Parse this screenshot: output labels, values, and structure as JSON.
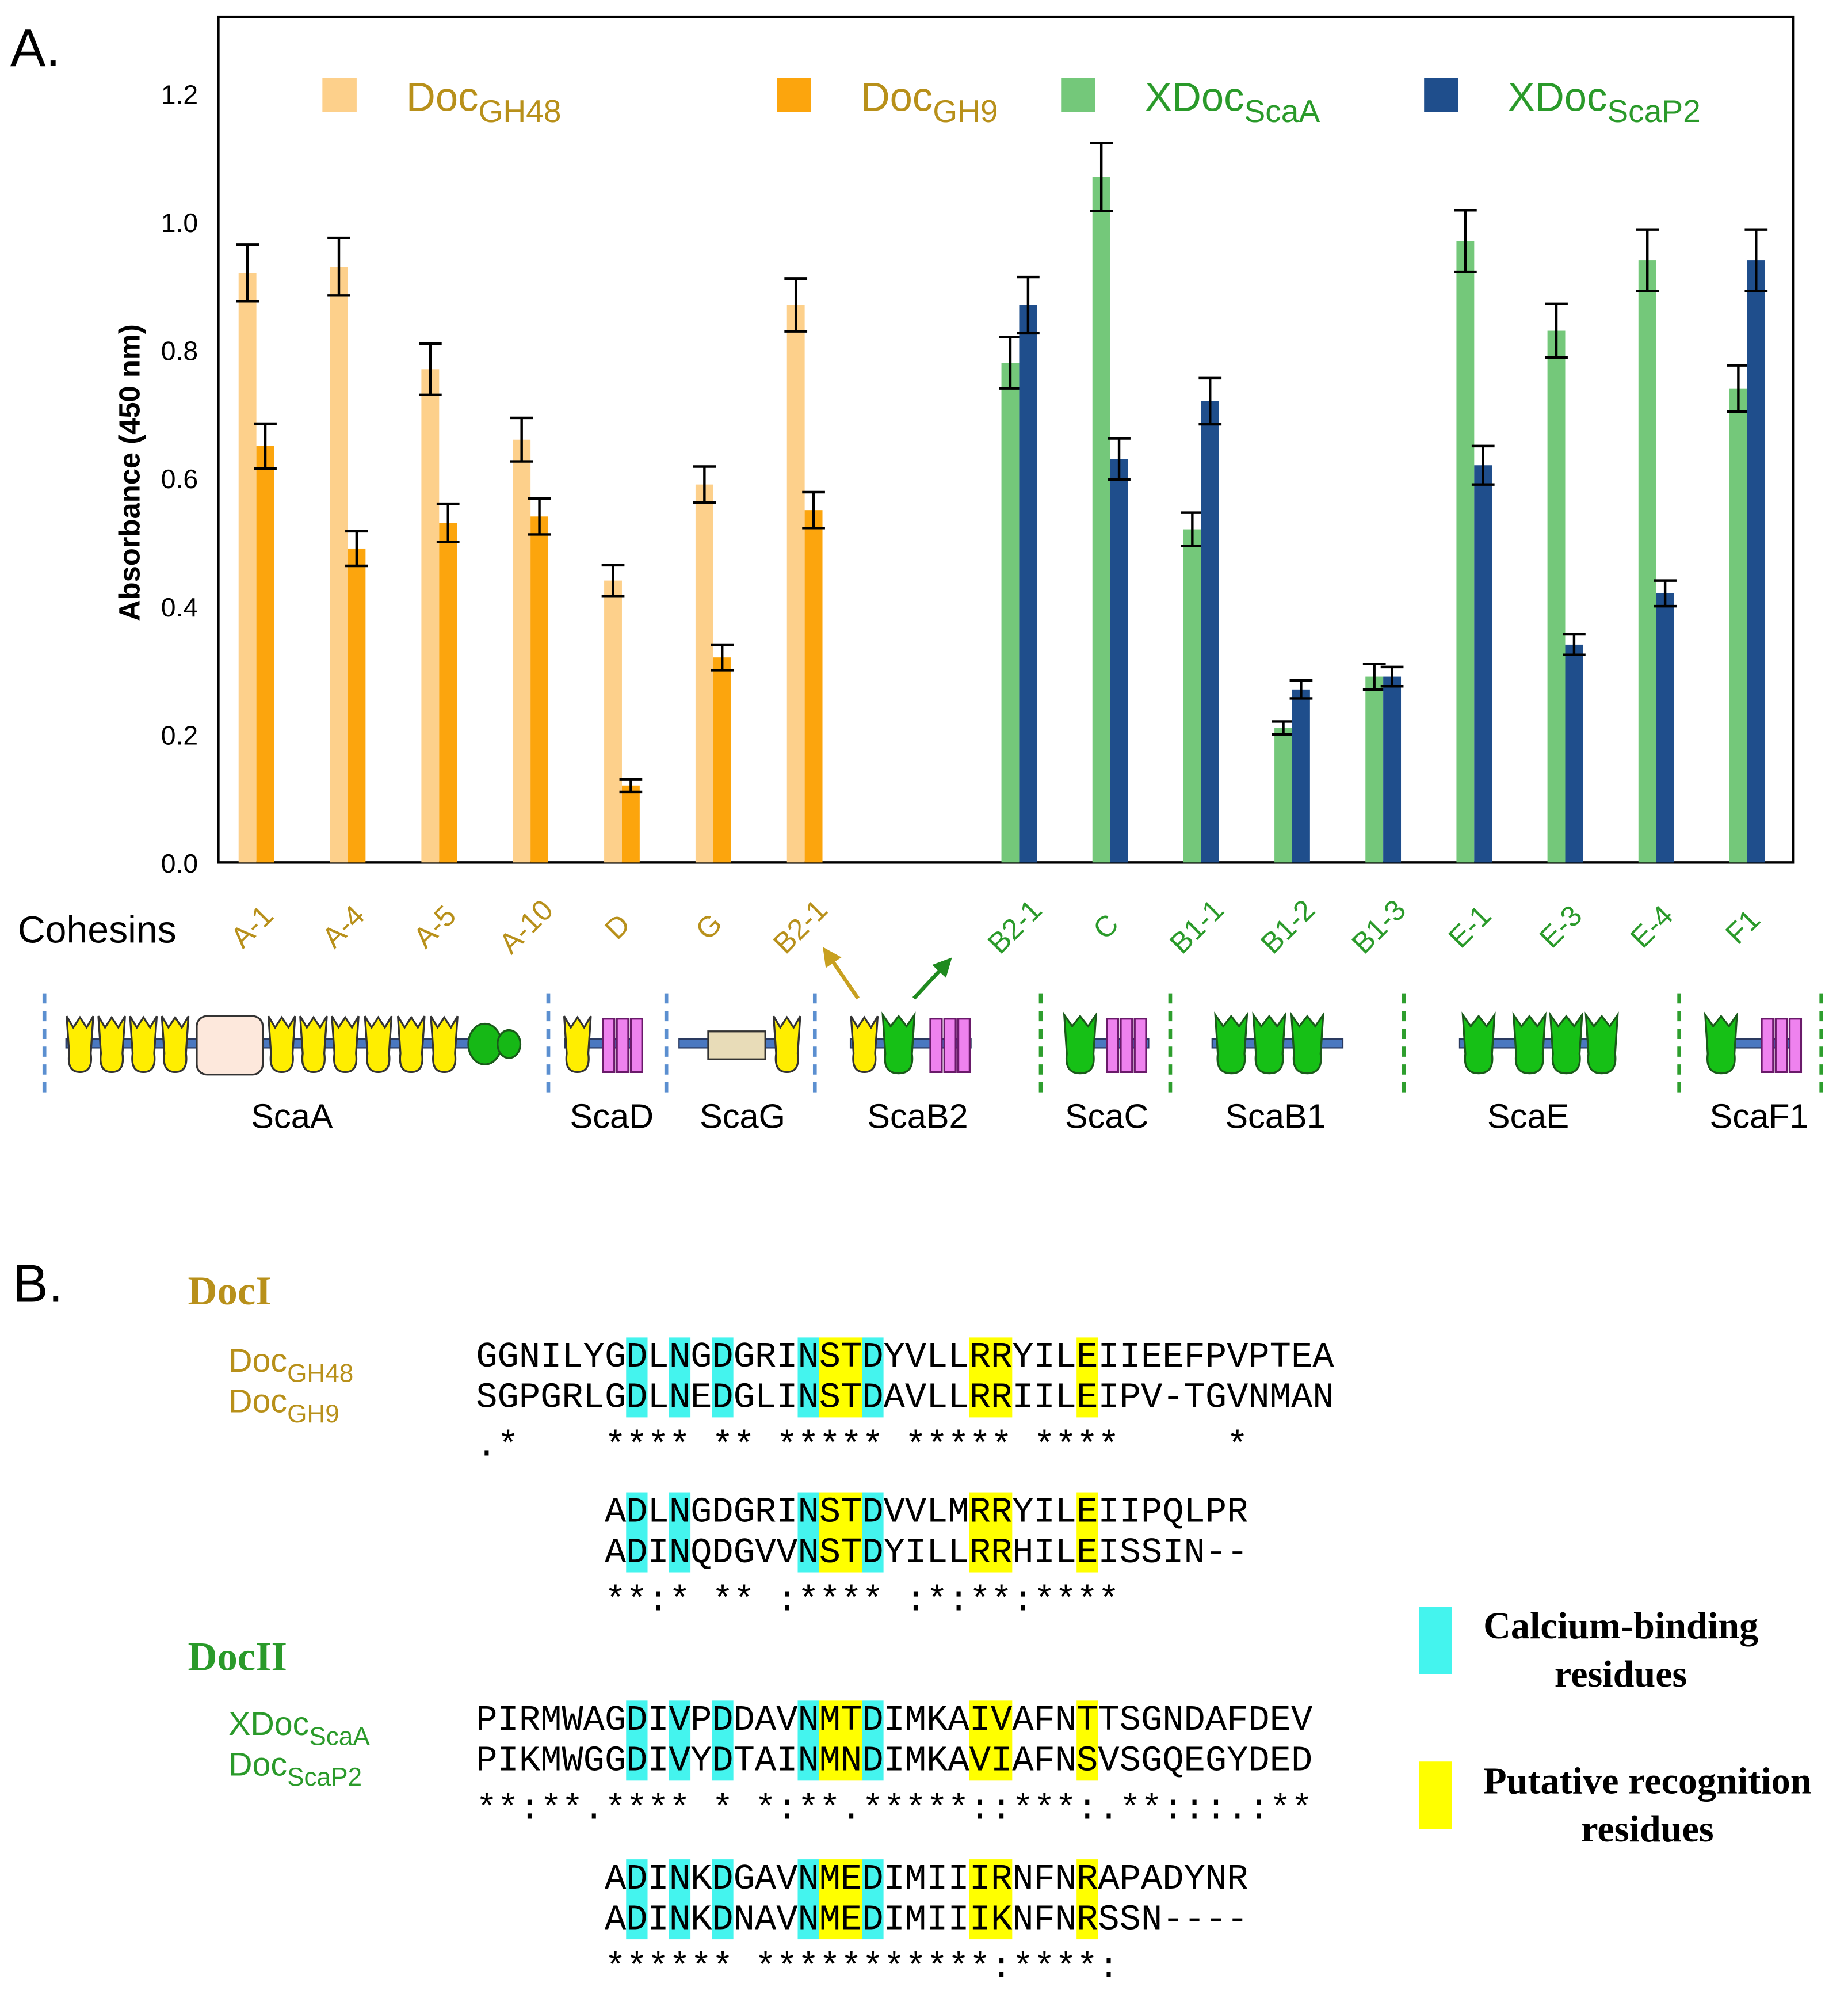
{
  "chart_data": {
    "type": "bar",
    "panel_label": "A.",
    "ylabel": "Absorbance (450 nm)",
    "xlabel": "Cohesins",
    "categories": [
      "A-1",
      "A-4",
      "A-5",
      "A-10",
      "D",
      "G",
      "B2-1",
      "B2-1",
      "C",
      "B1-1",
      "B1-2",
      "B1-3",
      "E-1",
      "E-3",
      "E-4",
      "F1"
    ],
    "category_colors": [
      "#b8901a",
      "#b8901a",
      "#b8901a",
      "#b8901a",
      "#b8901a",
      "#b8901a",
      "#b8901a",
      "#2a9a2a",
      "#2a9a2a",
      "#2a9a2a",
      "#2a9a2a",
      "#2a9a2a",
      "#2a9a2a",
      "#2a9a2a",
      "#2a9a2a",
      "#2a9a2a"
    ],
    "ylim": [
      0,
      1.32
    ],
    "yticks": [
      {
        "value": 0,
        "label": "0.0"
      },
      0.2,
      0.4,
      0.6,
      0.8,
      {
        "value": 1,
        "label": "1.0"
      },
      1.2
    ],
    "grid": false,
    "series": [
      {
        "name": "Doc",
        "name_sub": "GH48",
        "color": "#fdd08b",
        "label_color": "#b8901a",
        "values": [
          0.92,
          0.93,
          0.77,
          0.66,
          0.44,
          0.59,
          0.87,
          null,
          null,
          null,
          null,
          null,
          null,
          null,
          null,
          null
        ],
        "errors": [
          0.044,
          0.045,
          0.04,
          0.034,
          0.024,
          0.028,
          0.041,
          null,
          null,
          null,
          null,
          null,
          null,
          null,
          null,
          null
        ]
      },
      {
        "name": "Doc",
        "name_sub": "GH9",
        "color": "#fca50d",
        "label_color": "#b8901a",
        "values": [
          0.65,
          0.49,
          0.53,
          0.54,
          0.12,
          0.32,
          0.55,
          null,
          null,
          null,
          null,
          null,
          null,
          null,
          null,
          null
        ],
        "errors": [
          0.035,
          0.027,
          0.03,
          0.028,
          0.01,
          0.02,
          0.028,
          null,
          null,
          null,
          null,
          null,
          null,
          null,
          null,
          null
        ]
      },
      {
        "name": "XDoc",
        "name_sub": "ScaA",
        "color": "#74c87a",
        "label_color": "#2a9a2a",
        "values": [
          null,
          null,
          null,
          null,
          null,
          null,
          null,
          0.78,
          1.07,
          0.52,
          0.21,
          0.29,
          0.97,
          0.83,
          0.94,
          0.74
        ],
        "errors": [
          null,
          null,
          null,
          null,
          null,
          null,
          null,
          0.04,
          0.053,
          0.026,
          0.01,
          0.02,
          0.048,
          0.042,
          0.048,
          0.036
        ]
      },
      {
        "name": "XDoc",
        "name_sub": "ScaP2",
        "color": "#1f4e8c",
        "label_color": "#2a9a2a",
        "values": [
          null,
          null,
          null,
          null,
          null,
          null,
          null,
          0.87,
          0.63,
          0.72,
          0.27,
          0.29,
          0.62,
          0.34,
          0.42,
          0.94
        ],
        "errors": [
          null,
          null,
          null,
          null,
          null,
          null,
          null,
          0.044,
          0.032,
          0.036,
          0.014,
          0.015,
          0.03,
          0.016,
          0.02,
          0.048
        ]
      }
    ]
  },
  "scaffoldins": [
    "ScaA",
    "ScaD",
    "ScaG",
    "ScaB2",
    "ScaC",
    "ScaB1",
    "ScaE",
    "ScaF1"
  ],
  "alignment": {
    "panel_label": "B.",
    "groups": [
      {
        "title": "DocI",
        "color": "#b8901a",
        "blocks": [
          {
            "rows": [
              {
                "label": "Doc",
                "label_sub": "GH48",
                "sequence": "GGNILYGDLNGDGRINSTDYVLLRRYILEIIEEFPVPTEA"
              },
              {
                "label": "Doc",
                "label_sub": "GH9",
                "sequence": "SGPGRLGDLNEDGLINSTDAVLLRRIILEIPV-TGVNMAN"
              }
            ],
            "conservation": ".*    **** ** ***** ***** ****     *",
            "highlights": [
              [
                7,
                9,
                11,
                15,
                18
              ],
              [
                16,
                17,
                23,
                24,
                28
              ]
            ]
          },
          {
            "rows": [
              {
                "sequence": "ADLNGDGRINSTDVVLMRRYILEIIPQLPR"
              },
              {
                "sequence": "ADINQDGVVNSTDYILLRRHILEISSIN--"
              }
            ],
            "conservation": "**:* ** :**** :*:**:****",
            "highlights": [
              [
                1,
                3,
                9,
                12
              ],
              [
                10,
                11,
                17,
                18,
                22
              ]
            ]
          }
        ]
      },
      {
        "title": "DocII",
        "color": "#2a9a2a",
        "blocks": [
          {
            "rows": [
              {
                "label": "XDoc",
                "label_sub": "ScaA",
                "sequence": "PIRMWAGDIVPDDAVNMTDIMKAIVAFNTTSGNDAFDEV"
              },
              {
                "label": "Doc",
                "label_sub": "ScaP2",
                "sequence": "PIKMWGGDIVYDTAINMNDIMKAVIAFNSVSGQEGYDED"
              }
            ],
            "conservation": "**:**.**** * *:**.*****::***:.**:::.:**",
            "highlights": [
              [
                7,
                9,
                11,
                15,
                18
              ],
              [
                16,
                17,
                23,
                24,
                28
              ]
            ]
          },
          {
            "rows": [
              {
                "sequence": "ADINKDGAVNMEDIMIIIRNFNRAPADYNR"
              },
              {
                "sequence": "ADINKDNAVNMEDIMIIIKNFNRSSN----"
              }
            ],
            "conservation": "****** ***********:****:",
            "highlights": [
              [
                1,
                3,
                5,
                9,
                12
              ],
              [
                10,
                11,
                17,
                18,
                22
              ]
            ]
          }
        ]
      }
    ],
    "legend": [
      {
        "lines": [
          "Calcium-binding",
          "residues"
        ],
        "color": "#44f4ee"
      },
      {
        "lines": [
          "Putative recognition",
          "residues"
        ],
        "color": "#ffff00"
      }
    ]
  }
}
